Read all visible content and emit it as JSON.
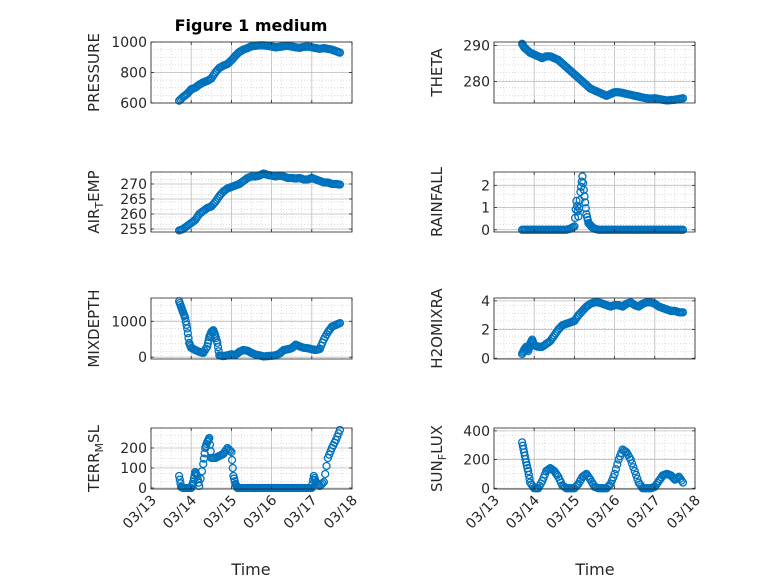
{
  "figure": {
    "title": "Figure 1 medium",
    "xlabel": "Time",
    "marker_color": "#0072BD",
    "axis_color": "#262626",
    "grid_color": "#cfcfcf"
  },
  "chart_data": [
    {
      "type": "scatter",
      "name": "PRESSURE",
      "ylabel": "PRESSURE",
      "ylabel_sub": "",
      "xlim": [
        0,
        5
      ],
      "ylim": [
        600,
        1000
      ],
      "yticks": [
        600,
        800,
        1000
      ],
      "xticks": [
        0,
        1,
        2,
        3,
        4,
        5
      ],
      "xticklabels": [
        "03/13",
        "03/14",
        "03/15",
        "03/16",
        "03/17",
        "03/18"
      ],
      "show_xticklabels": false,
      "grid": true,
      "x": [
        0.7,
        0.8,
        0.9,
        1.0,
        1.1,
        1.2,
        1.3,
        1.4,
        1.5,
        1.6,
        1.7,
        1.8,
        1.9,
        2.0,
        2.1,
        2.2,
        2.3,
        2.4,
        2.5,
        2.6,
        2.7,
        2.8,
        2.9,
        3.0,
        3.1,
        3.2,
        3.3,
        3.4,
        3.5,
        3.6,
        3.7,
        3.8,
        3.9,
        4.0,
        4.1,
        4.2,
        4.3,
        4.4,
        4.5,
        4.6,
        4.7
      ],
      "y": [
        615,
        640,
        660,
        690,
        700,
        720,
        735,
        745,
        760,
        800,
        830,
        845,
        855,
        880,
        910,
        935,
        950,
        960,
        972,
        975,
        978,
        978,
        975,
        970,
        965,
        968,
        972,
        975,
        970,
        965,
        962,
        968,
        970,
        965,
        960,
        955,
        960,
        955,
        950,
        940,
        930
      ]
    },
    {
      "type": "scatter",
      "name": "THETA",
      "ylabel": "THETA",
      "ylabel_sub": "",
      "xlim": [
        0,
        5
      ],
      "ylim": [
        274,
        291
      ],
      "yticks": [
        280,
        290
      ],
      "xticks": [
        0,
        1,
        2,
        3,
        4,
        5
      ],
      "xticklabels": [
        "03/13",
        "03/14",
        "03/15",
        "03/16",
        "03/17",
        "03/18"
      ],
      "show_xticklabels": false,
      "grid": true,
      "x": [
        0.7,
        0.75,
        0.8,
        0.9,
        1.0,
        1.1,
        1.2,
        1.3,
        1.4,
        1.5,
        1.6,
        1.7,
        1.8,
        1.9,
        2.0,
        2.1,
        2.2,
        2.3,
        2.4,
        2.5,
        2.6,
        2.7,
        2.8,
        2.9,
        3.0,
        3.1,
        3.2,
        3.3,
        3.4,
        3.5,
        3.6,
        3.7,
        3.8,
        3.9,
        4.0,
        4.1,
        4.2,
        4.3,
        4.4,
        4.5,
        4.6,
        4.7
      ],
      "y": [
        290.5,
        289.5,
        289,
        288,
        287.5,
        287,
        286.5,
        287,
        287,
        286.5,
        286,
        285,
        284,
        283,
        282,
        281,
        280,
        279,
        278,
        277.5,
        277,
        276.5,
        276,
        276.5,
        277,
        277,
        276.8,
        276.5,
        276.3,
        276,
        275.8,
        275.5,
        275.3,
        275.2,
        275.3,
        275.1,
        274.9,
        274.7,
        274.8,
        274.9,
        275.1,
        275.3
      ]
    },
    {
      "type": "scatter",
      "name": "AIR_TEMP",
      "ylabel": "AIR",
      "ylabel_sub": "T",
      "ylabel_rest": "EMP",
      "xlim": [
        0,
        5
      ],
      "ylim": [
        254,
        274
      ],
      "yticks": [
        255,
        260,
        265,
        270
      ],
      "xticks": [
        0,
        1,
        2,
        3,
        4,
        5
      ],
      "xticklabels": [
        "03/13",
        "03/14",
        "03/15",
        "03/16",
        "03/17",
        "03/18"
      ],
      "show_xticklabels": false,
      "grid": true,
      "x": [
        0.7,
        0.8,
        0.9,
        1.0,
        1.1,
        1.2,
        1.3,
        1.4,
        1.5,
        1.6,
        1.7,
        1.8,
        1.9,
        2.0,
        2.1,
        2.2,
        2.3,
        2.4,
        2.5,
        2.6,
        2.7,
        2.8,
        2.9,
        3.0,
        3.1,
        3.2,
        3.3,
        3.4,
        3.5,
        3.6,
        3.7,
        3.8,
        3.9,
        4.0,
        4.1,
        4.2,
        4.3,
        4.4,
        4.5,
        4.6,
        4.7
      ],
      "y": [
        254.5,
        255,
        256,
        257,
        258,
        260,
        261,
        262,
        262.5,
        264,
        266,
        267.5,
        268.5,
        269,
        269.5,
        270,
        271,
        272,
        272.5,
        272.5,
        272.8,
        273.5,
        273,
        272.8,
        272.5,
        272.8,
        272.5,
        272,
        272,
        271.8,
        272,
        271.5,
        271.5,
        272,
        271.5,
        271,
        270.5,
        270.5,
        270,
        270,
        269.8
      ]
    },
    {
      "type": "scatter",
      "name": "RAINFALL",
      "ylabel": "RAINFALL",
      "ylabel_sub": "",
      "xlim": [
        0,
        5
      ],
      "ylim": [
        -0.1,
        2.6
      ],
      "yticks": [
        0,
        1,
        2
      ],
      "xticks": [
        0,
        1,
        2,
        3,
        4,
        5
      ],
      "xticklabels": [
        "03/13",
        "03/14",
        "03/15",
        "03/16",
        "03/17",
        "03/18"
      ],
      "show_xticklabels": false,
      "grid": true,
      "x": [
        0.7,
        0.8,
        0.9,
        1.0,
        1.1,
        1.2,
        1.3,
        1.4,
        1.5,
        1.6,
        1.7,
        1.8,
        1.9,
        2.0,
        2.05,
        2.1,
        2.15,
        2.2,
        2.25,
        2.3,
        2.35,
        2.4,
        2.45,
        2.5,
        2.6,
        2.7,
        2.8,
        2.9,
        3.0,
        3.1,
        3.2,
        3.3,
        3.4,
        3.5,
        3.6,
        3.7,
        3.8,
        3.9,
        4.0,
        4.1,
        4.2,
        4.3,
        4.4,
        4.5,
        4.6,
        4.7
      ],
      "y": [
        0,
        0,
        0,
        0,
        0,
        0,
        0,
        0,
        0,
        0,
        0,
        0,
        0.05,
        0.15,
        1.3,
        0.6,
        1.7,
        2.4,
        1.5,
        0.7,
        0.3,
        0.2,
        0.1,
        0.05,
        0,
        0,
        0,
        0,
        0,
        0,
        0,
        0,
        0,
        0,
        0,
        0,
        0,
        0,
        0,
        0,
        0,
        0,
        0,
        0,
        0,
        0
      ]
    },
    {
      "type": "scatter",
      "name": "MIXDEPTH",
      "ylabel": "MIXDEPTH",
      "ylabel_sub": "",
      "xlim": [
        0,
        5
      ],
      "ylim": [
        -50,
        1650
      ],
      "yticks": [
        0,
        1000
      ],
      "xticks": [
        0,
        1,
        2,
        3,
        4,
        5
      ],
      "xticklabels": [
        "03/13",
        "03/14",
        "03/15",
        "03/16",
        "03/17",
        "03/18"
      ],
      "show_xticklabels": false,
      "grid": true,
      "x": [
        0.7,
        0.75,
        0.8,
        0.85,
        0.9,
        0.95,
        1.0,
        1.1,
        1.2,
        1.3,
        1.4,
        1.45,
        1.5,
        1.55,
        1.6,
        1.65,
        1.7,
        1.8,
        1.9,
        2.0,
        2.1,
        2.2,
        2.3,
        2.4,
        2.5,
        2.6,
        2.7,
        2.8,
        2.9,
        3.0,
        3.1,
        3.2,
        3.3,
        3.4,
        3.5,
        3.6,
        3.7,
        3.8,
        3.9,
        4.0,
        4.1,
        4.2,
        4.3,
        4.4,
        4.5,
        4.6,
        4.7
      ],
      "y": [
        1560,
        1400,
        1250,
        1100,
        800,
        400,
        260,
        200,
        150,
        120,
        300,
        560,
        700,
        750,
        600,
        400,
        50,
        30,
        50,
        80,
        60,
        150,
        200,
        180,
        120,
        70,
        50,
        20,
        30,
        40,
        50,
        100,
        200,
        220,
        250,
        350,
        300,
        260,
        250,
        220,
        200,
        230,
        500,
        700,
        850,
        900,
        950
      ]
    },
    {
      "type": "scatter",
      "name": "H2OMIXRA",
      "ylabel": "H2OMIXRA",
      "ylabel_sub": "",
      "xlim": [
        0,
        5
      ],
      "ylim": [
        -0.05,
        4.2
      ],
      "yticks": [
        0,
        2,
        4
      ],
      "xticks": [
        0,
        1,
        2,
        3,
        4,
        5
      ],
      "xticklabels": [
        "03/13",
        "03/14",
        "03/15",
        "03/16",
        "03/17",
        "03/18"
      ],
      "show_xticklabels": false,
      "grid": true,
      "x": [
        0.7,
        0.75,
        0.8,
        0.85,
        0.9,
        0.95,
        1.0,
        1.1,
        1.2,
        1.3,
        1.4,
        1.5,
        1.6,
        1.7,
        1.8,
        1.9,
        2.0,
        2.1,
        2.2,
        2.3,
        2.4,
        2.5,
        2.6,
        2.7,
        2.8,
        2.9,
        3.0,
        3.1,
        3.2,
        3.3,
        3.4,
        3.5,
        3.6,
        3.7,
        3.8,
        3.9,
        4.0,
        4.1,
        4.2,
        4.3,
        4.4,
        4.5,
        4.6,
        4.7
      ],
      "y": [
        0.3,
        0.6,
        0.8,
        0.5,
        1.0,
        1.3,
        0.9,
        0.8,
        0.8,
        1.0,
        1.2,
        1.6,
        2.0,
        2.3,
        2.4,
        2.5,
        2.6,
        3.0,
        3.3,
        3.6,
        3.8,
        3.9,
        3.9,
        3.8,
        3.7,
        3.6,
        3.7,
        3.7,
        3.6,
        3.8,
        3.9,
        3.7,
        3.6,
        3.8,
        3.9,
        3.9,
        3.8,
        3.6,
        3.5,
        3.4,
        3.3,
        3.3,
        3.2,
        3.2
      ]
    },
    {
      "type": "scatter",
      "name": "TERR_MSL",
      "ylabel": "TERR",
      "ylabel_sub": "M",
      "ylabel_rest": "SL",
      "xlim": [
        0,
        5
      ],
      "ylim": [
        -5,
        300
      ],
      "yticks": [
        0,
        100,
        200
      ],
      "xticks": [
        0,
        1,
        2,
        3,
        4,
        5
      ],
      "xticklabels": [
        "03/13",
        "03/14",
        "03/15",
        "03/16",
        "03/17",
        "03/18"
      ],
      "show_xticklabels": true,
      "grid": true,
      "x": [
        0.7,
        0.75,
        0.8,
        0.9,
        1.0,
        1.05,
        1.1,
        1.15,
        1.2,
        1.3,
        1.35,
        1.4,
        1.45,
        1.5,
        1.6,
        1.7,
        1.8,
        1.9,
        2.0,
        2.05,
        2.1,
        2.15,
        2.2,
        2.3,
        2.4,
        2.5,
        2.6,
        2.7,
        2.8,
        2.9,
        3.0,
        3.1,
        3.2,
        3.3,
        3.4,
        3.5,
        3.6,
        3.7,
        3.8,
        3.9,
        4.0,
        4.05,
        4.1,
        4.2,
        4.3,
        4.4,
        4.5,
        4.6,
        4.7
      ],
      "y": [
        60,
        5,
        0,
        0,
        0,
        30,
        80,
        60,
        10,
        120,
        200,
        230,
        250,
        150,
        150,
        160,
        170,
        200,
        180,
        60,
        20,
        0,
        0,
        0,
        0,
        0,
        0,
        0,
        0,
        0,
        0,
        0,
        0,
        0,
        0,
        0,
        0,
        0,
        0,
        0,
        0,
        60,
        30,
        10,
        30,
        150,
        200,
        240,
        290
      ]
    },
    {
      "type": "scatter",
      "name": "SUN_FLUX",
      "ylabel": "SUN",
      "ylabel_sub": "F",
      "ylabel_rest": "LUX",
      "xlim": [
        0,
        5
      ],
      "ylim": [
        -5,
        420
      ],
      "yticks": [
        0,
        200,
        400
      ],
      "xticks": [
        0,
        1,
        2,
        3,
        4,
        5
      ],
      "xticklabels": [
        "03/13",
        "03/14",
        "03/15",
        "03/16",
        "03/17",
        "03/18"
      ],
      "show_xticklabels": true,
      "grid": true,
      "x": [
        0.7,
        0.75,
        0.8,
        0.85,
        0.9,
        1.0,
        1.1,
        1.2,
        1.3,
        1.4,
        1.5,
        1.6,
        1.7,
        1.8,
        1.9,
        2.0,
        2.1,
        2.2,
        2.3,
        2.4,
        2.5,
        2.6,
        2.7,
        2.8,
        2.9,
        3.0,
        3.1,
        3.2,
        3.3,
        3.4,
        3.5,
        3.6,
        3.7,
        3.8,
        3.9,
        4.0,
        4.1,
        4.2,
        4.3,
        4.4,
        4.5,
        4.6,
        4.7
      ],
      "y": [
        320,
        250,
        180,
        120,
        40,
        0,
        0,
        50,
        120,
        140,
        120,
        80,
        20,
        0,
        0,
        0,
        30,
        80,
        100,
        60,
        10,
        0,
        0,
        0,
        30,
        100,
        200,
        270,
        250,
        200,
        120,
        40,
        0,
        0,
        0,
        10,
        50,
        90,
        100,
        90,
        60,
        80,
        40
      ]
    }
  ]
}
